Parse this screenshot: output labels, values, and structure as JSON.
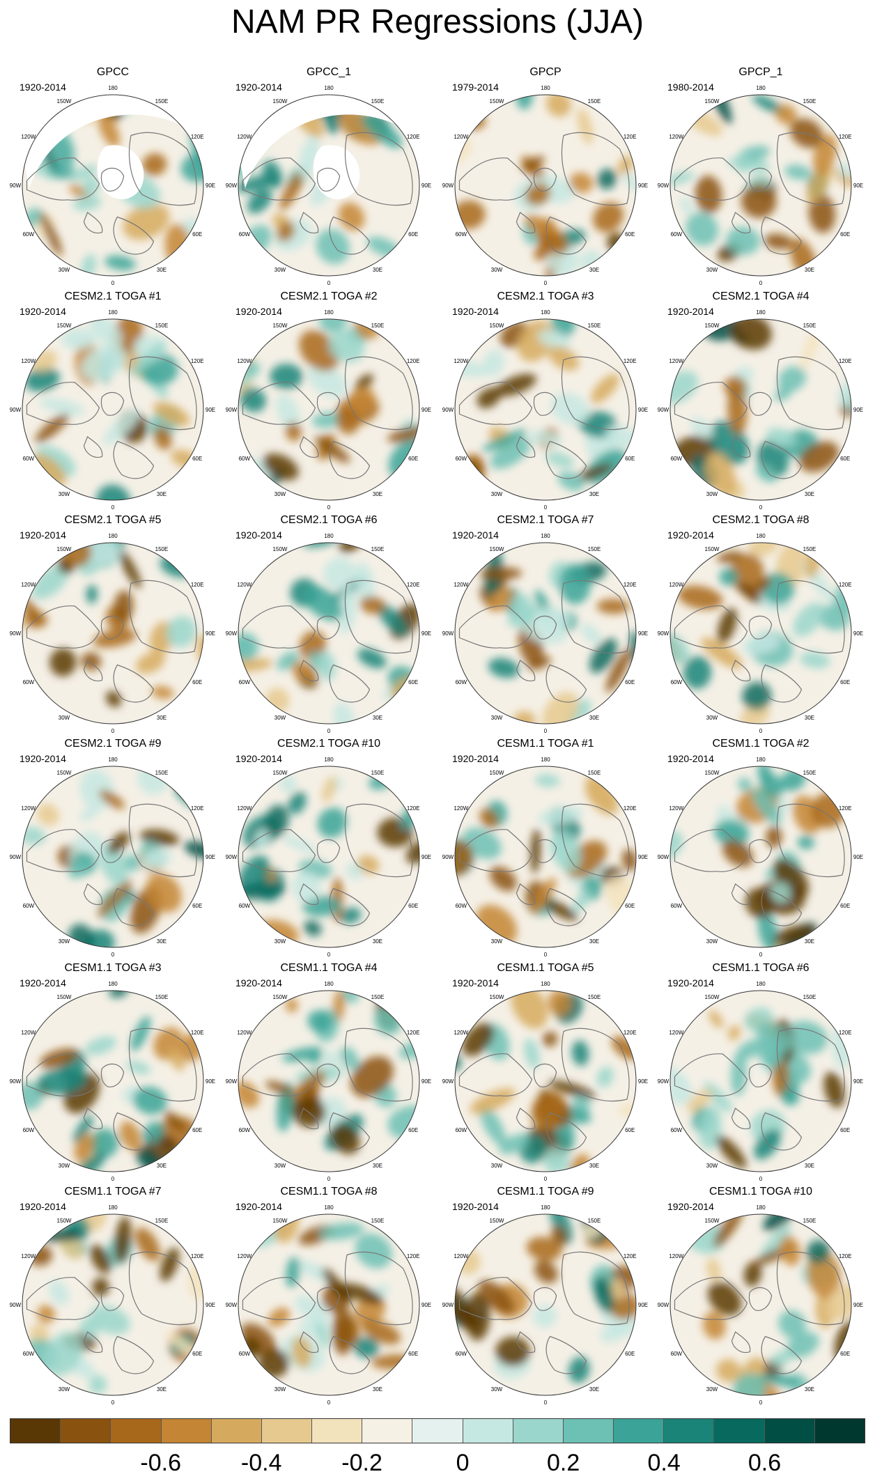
{
  "title": "NAM PR Regressions (JJA)",
  "longitude_labels": [
    "180",
    "150E",
    "120E",
    "90E",
    "60E",
    "30E",
    "0",
    "30W",
    "60W",
    "90W",
    "120W",
    "150W"
  ],
  "colors": {
    "negative": "#8c510a",
    "neutral": "#f5f0e6",
    "positive": "#01665e",
    "land_outline": "#777777",
    "map_border": "#333333",
    "missing_data": "#ffffff"
  },
  "colorbar": {
    "colors": [
      "#5a3806",
      "#8a520f",
      "#a8681b",
      "#c48534",
      "#d6aa5e",
      "#e6c98e",
      "#f3e3bd",
      "#f6f1e5",
      "#e5f1ee",
      "#c6e8e2",
      "#9ad6cb",
      "#6cc0b4",
      "#3ba397",
      "#1a8478",
      "#086a5e",
      "#014f44",
      "#00382f"
    ],
    "tick_labels": [
      "-0.6",
      "-0.4",
      "-0.2",
      "0",
      "0.2",
      "0.4",
      "0.6"
    ]
  },
  "panels": [
    {
      "title": "GPCC",
      "period": "1920-2014"
    },
    {
      "title": "GPCC_1",
      "period": "1920-2014"
    },
    {
      "title": "GPCP",
      "period": "1979-2014"
    },
    {
      "title": "GPCP_1",
      "period": "1980-2014"
    },
    {
      "title": "CESM2.1 TOGA #1",
      "period": "1920-2014"
    },
    {
      "title": "CESM2.1 TOGA #2",
      "period": "1920-2014"
    },
    {
      "title": "CESM2.1 TOGA #3",
      "period": "1920-2014"
    },
    {
      "title": "CESM2.1 TOGA #4",
      "period": "1920-2014"
    },
    {
      "title": "CESM2.1 TOGA #5",
      "period": "1920-2014"
    },
    {
      "title": "CESM2.1 TOGA #6",
      "period": "1920-2014"
    },
    {
      "title": "CESM2.1 TOGA #7",
      "period": "1920-2014"
    },
    {
      "title": "CESM2.1 TOGA #8",
      "period": "1920-2014"
    },
    {
      "title": "CESM2.1 TOGA #9",
      "period": "1920-2014"
    },
    {
      "title": "CESM2.1 TOGA #10",
      "period": "1920-2014"
    },
    {
      "title": "CESM1.1 TOGA #1",
      "period": "1920-2014"
    },
    {
      "title": "CESM1.1 TOGA #2",
      "period": "1920-2014"
    },
    {
      "title": "CESM1.1 TOGA #3",
      "period": "1920-2014"
    },
    {
      "title": "CESM1.1 TOGA #4",
      "period": "1920-2014"
    },
    {
      "title": "CESM1.1 TOGA #5",
      "period": "1920-2014"
    },
    {
      "title": "CESM1.1 TOGA #6",
      "period": "1920-2014"
    },
    {
      "title": "CESM1.1 TOGA #7",
      "period": "1920-2014"
    },
    {
      "title": "CESM1.1 TOGA #8",
      "period": "1920-2014"
    },
    {
      "title": "CESM1.1 TOGA #9",
      "period": "1920-2014"
    },
    {
      "title": "CESM1.1 TOGA #10",
      "period": "1920-2014"
    }
  ]
}
